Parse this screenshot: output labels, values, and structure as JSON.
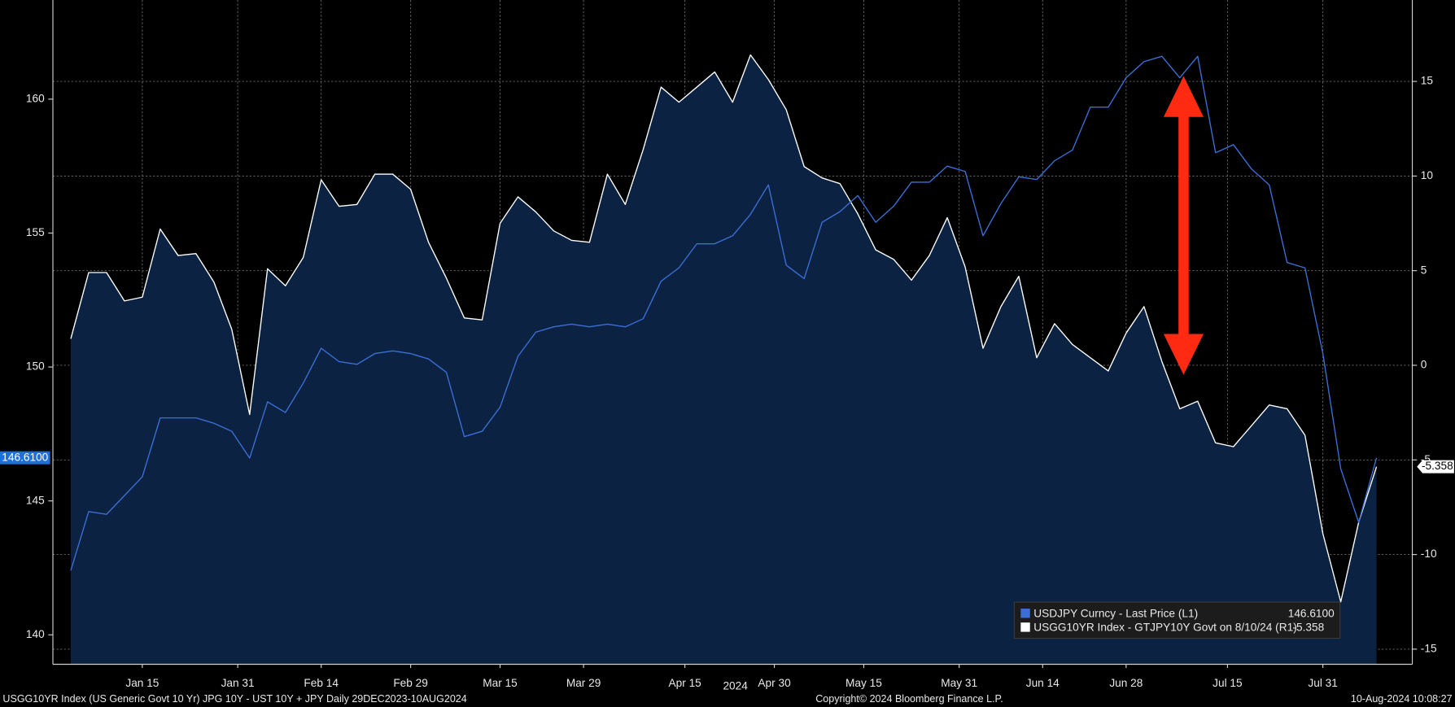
{
  "chart_data": {
    "type": "line",
    "x": [
      "2024-01-03",
      "2024-01-06",
      "2024-01-09",
      "2024-01-12",
      "2024-01-15",
      "2024-01-18",
      "2024-01-21",
      "2024-01-24",
      "2024-01-27",
      "2024-01-30",
      "2024-02-02",
      "2024-02-05",
      "2024-02-08",
      "2024-02-11",
      "2024-02-14",
      "2024-02-17",
      "2024-02-20",
      "2024-02-23",
      "2024-02-26",
      "2024-02-29",
      "2024-03-03",
      "2024-03-06",
      "2024-03-09",
      "2024-03-12",
      "2024-03-15",
      "2024-03-18",
      "2024-03-21",
      "2024-03-24",
      "2024-03-27",
      "2024-03-30",
      "2024-04-02",
      "2024-04-05",
      "2024-04-08",
      "2024-04-11",
      "2024-04-14",
      "2024-04-17",
      "2024-04-20",
      "2024-04-23",
      "2024-04-26",
      "2024-04-29",
      "2024-05-02",
      "2024-05-05",
      "2024-05-08",
      "2024-05-11",
      "2024-05-14",
      "2024-05-17",
      "2024-05-20",
      "2024-05-23",
      "2024-05-26",
      "2024-05-29",
      "2024-06-01",
      "2024-06-04",
      "2024-06-07",
      "2024-06-10",
      "2024-06-13",
      "2024-06-16",
      "2024-06-19",
      "2024-06-22",
      "2024-06-25",
      "2024-06-28",
      "2024-07-01",
      "2024-07-04",
      "2024-07-07",
      "2024-07-10",
      "2024-07-13",
      "2024-07-16",
      "2024-07-19",
      "2024-07-22",
      "2024-07-25",
      "2024-07-28",
      "2024-07-31",
      "2024-08-03",
      "2024-08-06",
      "2024-08-09"
    ],
    "series": [
      {
        "name": "USDJPY Curncy - Last Price (L1)",
        "color": "#3b6fd6",
        "axis": "y",
        "last_label": "146.6100",
        "values": [
          142.4,
          144.6,
          144.5,
          145.2,
          145.9,
          148.1,
          148.1,
          148.1,
          147.9,
          147.6,
          146.6,
          148.7,
          148.3,
          149.4,
          150.7,
          150.2,
          150.1,
          150.5,
          150.6,
          150.5,
          150.3,
          149.8,
          147.4,
          147.6,
          148.5,
          150.4,
          151.3,
          151.5,
          151.6,
          151.5,
          151.6,
          151.5,
          151.8,
          153.2,
          153.7,
          154.6,
          154.6,
          154.9,
          155.7,
          156.8,
          153.8,
          153.3,
          155.4,
          155.8,
          156.4,
          155.4,
          156.0,
          156.9,
          156.9,
          157.5,
          157.3,
          154.9,
          156.1,
          157.1,
          157.0,
          157.7,
          158.1,
          159.7,
          159.7,
          160.8,
          161.4,
          161.6,
          160.8,
          161.6,
          158.0,
          158.3,
          157.4,
          156.8,
          153.9,
          153.7,
          150.5,
          146.2,
          144.2,
          146.61
        ]
      },
      {
        "name": "USGG10YR Index - GTJPY10Y Govt on 8/10/24 (R1)",
        "color": "#ffffff",
        "axis": "y2",
        "fill": "#0b2242",
        "values": [
          1.4,
          4.9,
          4.9,
          3.4,
          3.6,
          7.2,
          5.8,
          5.9,
          4.4,
          1.9,
          -2.6,
          5.1,
          4.2,
          5.7,
          9.8,
          8.4,
          8.5,
          10.1,
          10.1,
          9.3,
          6.5,
          4.6,
          2.5,
          2.4,
          7.5,
          8.9,
          8.1,
          7.1,
          6.6,
          6.5,
          10.1,
          8.5,
          11.4,
          14.7,
          13.9,
          14.7,
          15.5,
          13.9,
          16.4,
          15.1,
          13.5,
          10.5,
          9.9,
          9.6,
          8.0,
          6.1,
          5.6,
          4.5,
          5.8,
          7.8,
          5.2,
          0.9,
          3.1,
          4.7,
          0.4,
          2.2,
          1.1,
          0.4,
          -0.3,
          1.7,
          3.1,
          0.2,
          -2.3,
          -1.9,
          -4.1,
          -4.3,
          -3.2,
          -2.1,
          -2.3,
          -3.7,
          -8.9,
          -12.5,
          -8.3,
          -5.358
        ]
      }
    ],
    "xlim": [
      "2023-12-31",
      "2024-08-15"
    ],
    "xticks": [
      {
        "value": "2024-01-15",
        "label": "Jan 15"
      },
      {
        "value": "2024-01-31",
        "label": "Jan 31"
      },
      {
        "value": "2024-02-14",
        "label": "Feb 14"
      },
      {
        "value": "2024-02-29",
        "label": "Feb 29"
      },
      {
        "value": "2024-03-15",
        "label": "Mar 15"
      },
      {
        "value": "2024-03-29",
        "label": "Mar 29"
      },
      {
        "value": "2024-04-15",
        "label": "Apr 15"
      },
      {
        "value": "2024-04-30",
        "label": "Apr 30"
      },
      {
        "value": "2024-05-15",
        "label": "May 15"
      },
      {
        "value": "2024-05-31",
        "label": "May 31"
      },
      {
        "value": "2024-06-14",
        "label": "Jun 14"
      },
      {
        "value": "2024-06-28",
        "label": "Jun 28"
      },
      {
        "value": "2024-07-15",
        "label": "Jul 15"
      },
      {
        "value": "2024-07-31",
        "label": "Jul 31"
      }
    ],
    "x_year_label": "2024",
    "ylim": [
      138.9,
      163.7
    ],
    "yticks": [
      140,
      145,
      150,
      155,
      160
    ],
    "y2lim": [
      -15.8,
      19.3
    ],
    "y2ticks": [
      -15,
      -10,
      -5,
      0,
      5,
      10,
      15
    ],
    "grid": true,
    "legend": "lower right"
  },
  "footer": {
    "left": "USGG10YR Index (US Generic Govt 10 Yr) JPG 10Y - UST 10Y + JPY  Daily 29DEC2023-10AUG2024",
    "center": "Copyright© 2024 Bloomberg Finance L.P.",
    "right": "10-Aug-2024 10:08:27"
  }
}
